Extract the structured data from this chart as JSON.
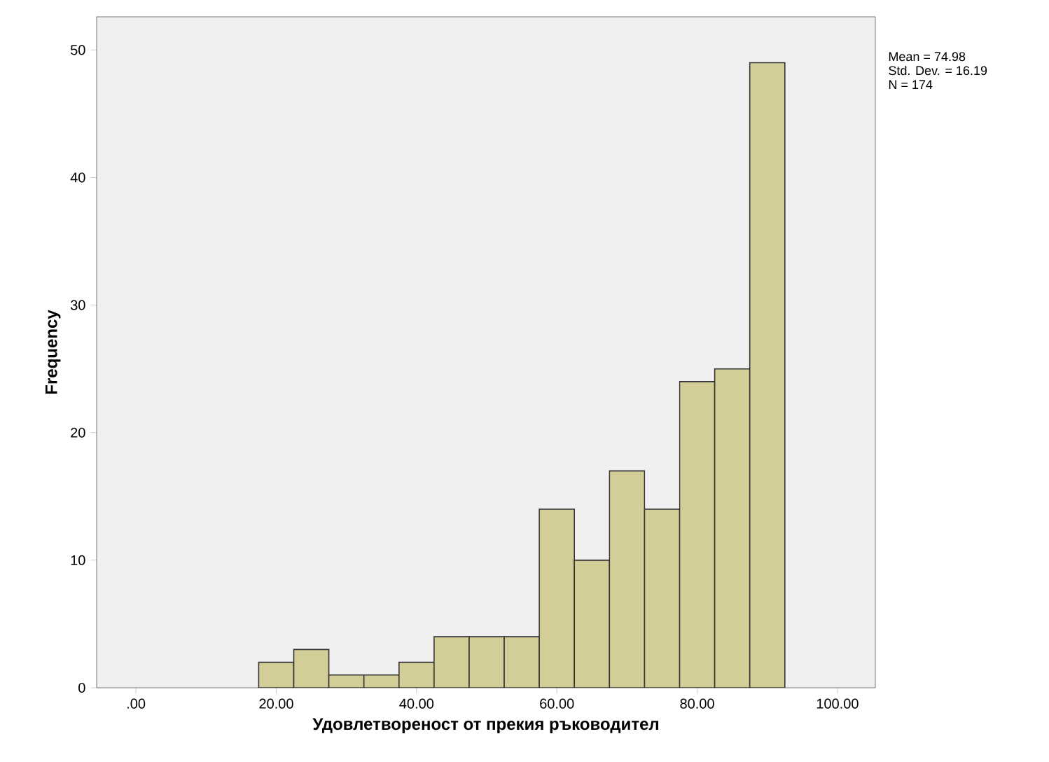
{
  "chart_data": {
    "type": "histogram",
    "xlabel": "Удовлетвореност от прекия ръководител",
    "ylabel": "Frequency",
    "bins": [
      17.5,
      22.5,
      27.5,
      32.5,
      37.5,
      42.5,
      47.5,
      52.5,
      57.5,
      62.5,
      67.5,
      72.5,
      77.5,
      82.5,
      87.5,
      92.5
    ],
    "values": [
      2,
      3,
      1,
      1,
      2,
      4,
      4,
      4,
      14,
      10,
      17,
      14,
      24,
      25,
      49
    ],
    "color": "#d3ce97",
    "xlim": [
      -5.6,
      105.4
    ],
    "ylim": [
      0,
      52.6
    ],
    "xticks": [
      {
        "value": 0,
        "label": ".00"
      },
      {
        "value": 20,
        "label": "20.00"
      },
      {
        "value": 40,
        "label": "40.00"
      },
      {
        "value": 60,
        "label": "60.00"
      },
      {
        "value": 80,
        "label": "80.00"
      },
      {
        "value": 100,
        "label": "100.00"
      }
    ],
    "yticks": [
      0,
      10,
      20,
      30,
      40,
      50
    ],
    "grid": false,
    "annotations": [
      "Mean = 74.98",
      "Std. Dev. = 16.19",
      "N = 174"
    ]
  }
}
